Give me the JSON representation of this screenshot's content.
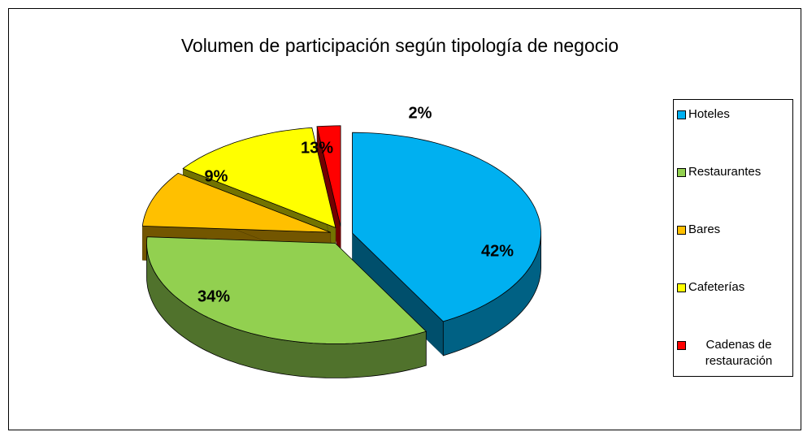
{
  "chart_data": {
    "type": "pie3d",
    "title": "Volumen de participación según tipología de negocio",
    "categories": [
      "Hoteles",
      "Restaurantes",
      "Bares",
      "Cafeterías",
      "Cadenas de restauración"
    ],
    "values": [
      42,
      34,
      9,
      13,
      2
    ],
    "value_labels": [
      "42%",
      "34%",
      "9%",
      "13%",
      "2%"
    ],
    "colors": [
      "#00B0F0",
      "#92D050",
      "#FFC000",
      "#FFFF00",
      "#FF0000"
    ],
    "legend": "right"
  }
}
